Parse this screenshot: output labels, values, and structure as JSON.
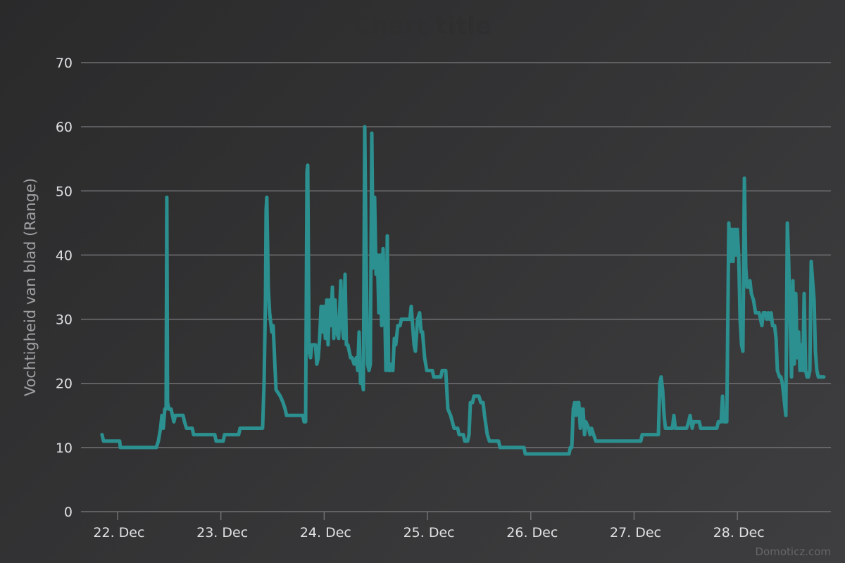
{
  "chart_data": {
    "type": "line",
    "title": "Chart title",
    "xlabel": "",
    "ylabel": "Vochtigheid van blad (Range)",
    "x_unit": "days since 22 Dec 00:00",
    "xlim": [
      -0.354,
      6.905
    ],
    "ylim": [
      0,
      70
    ],
    "grid": true,
    "y_ticks": [
      0,
      10,
      20,
      30,
      40,
      50,
      60,
      70
    ],
    "x_ticks": [
      {
        "value": 0,
        "label": "22. Dec"
      },
      {
        "value": 1,
        "label": "23. Dec"
      },
      {
        "value": 2,
        "label": "24. Dec"
      },
      {
        "value": 3,
        "label": "25. Dec"
      },
      {
        "value": 4,
        "label": "26. Dec"
      },
      {
        "value": 5,
        "label": "27. Dec"
      },
      {
        "value": 6,
        "label": "28. Dec"
      }
    ],
    "series": [
      {
        "name": "Vochtigheid van blad",
        "color": "#2b908f",
        "points": [
          [
            -0.15,
            12
          ],
          [
            -0.136,
            11
          ],
          [
            0.02,
            11
          ],
          [
            0.027,
            10
          ],
          [
            0.375,
            10
          ],
          [
            0.395,
            11
          ],
          [
            0.416,
            13
          ],
          [
            0.429,
            15
          ],
          [
            0.443,
            13
          ],
          [
            0.457,
            16
          ],
          [
            0.47,
            16
          ],
          [
            0.477,
            49
          ],
          [
            0.484,
            17
          ],
          [
            0.498,
            16
          ],
          [
            0.518,
            16
          ],
          [
            0.532,
            15
          ],
          [
            0.545,
            14
          ],
          [
            0.559,
            15
          ],
          [
            0.634,
            15
          ],
          [
            0.648,
            14
          ],
          [
            0.668,
            13
          ],
          [
            0.723,
            13
          ],
          [
            0.736,
            12
          ],
          [
            0.941,
            12
          ],
          [
            0.954,
            11
          ],
          [
            1.023,
            11
          ],
          [
            1.036,
            12
          ],
          [
            1.172,
            12
          ],
          [
            1.186,
            13
          ],
          [
            1.404,
            13
          ],
          [
            1.418,
            20
          ],
          [
            1.432,
            33
          ],
          [
            1.438,
            47
          ],
          [
            1.445,
            49
          ],
          [
            1.459,
            35
          ],
          [
            1.472,
            31
          ],
          [
            1.493,
            28
          ],
          [
            1.506,
            29
          ],
          [
            1.52,
            24
          ],
          [
            1.534,
            19
          ],
          [
            1.575,
            18
          ],
          [
            1.602,
            17
          ],
          [
            1.622,
            16
          ],
          [
            1.636,
            15
          ],
          [
            1.793,
            15
          ],
          [
            1.806,
            14
          ],
          [
            1.82,
            14
          ],
          [
            1.834,
            53
          ],
          [
            1.841,
            54
          ],
          [
            1.854,
            25
          ],
          [
            1.868,
            24
          ],
          [
            1.881,
            26
          ],
          [
            1.916,
            26
          ],
          [
            1.929,
            23
          ],
          [
            1.943,
            24
          ],
          [
            1.956,
            27
          ],
          [
            1.97,
            32
          ],
          [
            1.984,
            28
          ],
          [
            1.997,
            32
          ],
          [
            2.011,
            27
          ],
          [
            2.025,
            33
          ],
          [
            2.038,
            26
          ],
          [
            2.052,
            33
          ],
          [
            2.065,
            29
          ],
          [
            2.079,
            35
          ],
          [
            2.093,
            27
          ],
          [
            2.106,
            33
          ],
          [
            2.12,
            28
          ],
          [
            2.14,
            27
          ],
          [
            2.161,
            36
          ],
          [
            2.175,
            29
          ],
          [
            2.188,
            27
          ],
          [
            2.202,
            37
          ],
          [
            2.215,
            26
          ],
          [
            2.229,
            26
          ],
          [
            2.256,
            24
          ],
          [
            2.27,
            24
          ],
          [
            2.29,
            23
          ],
          [
            2.311,
            24
          ],
          [
            2.325,
            22
          ],
          [
            2.338,
            28
          ],
          [
            2.352,
            20
          ],
          [
            2.365,
            21
          ],
          [
            2.379,
            19
          ],
          [
            2.393,
            60
          ],
          [
            2.406,
            40
          ],
          [
            2.42,
            23
          ],
          [
            2.434,
            22
          ],
          [
            2.447,
            23
          ],
          [
            2.461,
            59
          ],
          [
            2.474,
            38
          ],
          [
            2.488,
            49
          ],
          [
            2.502,
            37
          ],
          [
            2.515,
            40
          ],
          [
            2.529,
            31
          ],
          [
            2.543,
            40
          ],
          [
            2.556,
            29
          ],
          [
            2.57,
            41
          ],
          [
            2.584,
            34
          ],
          [
            2.597,
            22
          ],
          [
            2.611,
            43
          ],
          [
            2.624,
            22
          ],
          [
            2.638,
            22
          ],
          [
            2.652,
            23
          ],
          [
            2.665,
            22
          ],
          [
            2.679,
            27
          ],
          [
            2.693,
            26
          ],
          [
            2.713,
            29
          ],
          [
            2.734,
            29
          ],
          [
            2.747,
            30
          ],
          [
            2.829,
            30
          ],
          [
            2.843,
            32
          ],
          [
            2.856,
            29
          ],
          [
            2.87,
            26
          ],
          [
            2.883,
            25
          ],
          [
            2.904,
            30
          ],
          [
            2.924,
            31
          ],
          [
            2.938,
            28
          ],
          [
            2.952,
            28
          ],
          [
            2.972,
            24
          ],
          [
            2.993,
            22
          ],
          [
            3.047,
            22
          ],
          [
            3.061,
            21
          ],
          [
            3.129,
            21
          ],
          [
            3.142,
            22
          ],
          [
            3.177,
            22
          ],
          [
            3.197,
            16
          ],
          [
            3.224,
            15
          ],
          [
            3.258,
            13
          ],
          [
            3.292,
            13
          ],
          [
            3.306,
            12
          ],
          [
            3.347,
            12
          ],
          [
            3.361,
            11
          ],
          [
            3.388,
            11
          ],
          [
            3.402,
            12
          ],
          [
            3.415,
            17
          ],
          [
            3.436,
            17
          ],
          [
            3.449,
            18
          ],
          [
            3.497,
            18
          ],
          [
            3.517,
            17
          ],
          [
            3.538,
            17
          ],
          [
            3.552,
            15
          ],
          [
            3.579,
            12
          ],
          [
            3.599,
            11
          ],
          [
            3.688,
            11
          ],
          [
            3.702,
            10
          ],
          [
            3.933,
            10
          ],
          [
            3.947,
            9
          ],
          [
            4.37,
            9
          ],
          [
            4.383,
            10
          ],
          [
            4.397,
            10
          ],
          [
            4.411,
            16
          ],
          [
            4.424,
            17
          ],
          [
            4.438,
            15
          ],
          [
            4.451,
            17
          ],
          [
            4.465,
            17
          ],
          [
            4.479,
            13
          ],
          [
            4.492,
            16
          ],
          [
            4.506,
            16
          ],
          [
            4.52,
            12
          ],
          [
            4.533,
            14
          ],
          [
            4.56,
            13
          ],
          [
            4.574,
            12
          ],
          [
            4.588,
            13
          ],
          [
            4.608,
            12
          ],
          [
            4.629,
            11
          ],
          [
            5.065,
            11
          ],
          [
            5.078,
            12
          ],
          [
            5.235,
            12
          ],
          [
            5.249,
            20
          ],
          [
            5.262,
            21
          ],
          [
            5.276,
            19
          ],
          [
            5.29,
            15
          ],
          [
            5.303,
            13
          ],
          [
            5.371,
            13
          ],
          [
            5.385,
            15
          ],
          [
            5.399,
            13
          ],
          [
            5.508,
            13
          ],
          [
            5.528,
            14
          ],
          [
            5.542,
            15
          ],
          [
            5.562,
            13
          ],
          [
            5.576,
            14
          ],
          [
            5.631,
            14
          ],
          [
            5.644,
            13
          ],
          [
            5.801,
            13
          ],
          [
            5.815,
            14
          ],
          [
            5.842,
            14
          ],
          [
            5.856,
            18
          ],
          [
            5.869,
            14
          ],
          [
            5.897,
            14
          ],
          [
            5.917,
            45
          ],
          [
            5.931,
            39
          ],
          [
            5.944,
            44
          ],
          [
            5.958,
            39
          ],
          [
            5.971,
            44
          ],
          [
            5.985,
            40
          ],
          [
            5.999,
            44
          ],
          [
            6.012,
            40
          ],
          [
            6.026,
            30
          ],
          [
            6.04,
            26
          ],
          [
            6.053,
            25
          ],
          [
            6.067,
            52
          ],
          [
            6.081,
            38
          ],
          [
            6.094,
            35
          ],
          [
            6.108,
            35
          ],
          [
            6.121,
            36
          ],
          [
            6.135,
            34
          ],
          [
            6.155,
            33
          ],
          [
            6.176,
            31
          ],
          [
            6.21,
            31
          ],
          [
            6.224,
            30
          ],
          [
            6.237,
            29
          ],
          [
            6.251,
            31
          ],
          [
            6.271,
            31
          ],
          [
            6.285,
            30
          ],
          [
            6.299,
            31
          ],
          [
            6.312,
            30
          ],
          [
            6.326,
            31
          ],
          [
            6.34,
            29
          ],
          [
            6.36,
            29
          ],
          [
            6.374,
            27
          ],
          [
            6.387,
            22
          ],
          [
            6.408,
            21
          ],
          [
            6.421,
            21
          ],
          [
            6.435,
            20
          ],
          [
            6.449,
            18
          ],
          [
            6.469,
            15
          ],
          [
            6.483,
            45
          ],
          [
            6.496,
            39
          ],
          [
            6.51,
            30
          ],
          [
            6.524,
            21
          ],
          [
            6.537,
            36
          ],
          [
            6.551,
            23
          ],
          [
            6.565,
            34
          ],
          [
            6.578,
            24
          ],
          [
            6.592,
            28
          ],
          [
            6.605,
            22
          ],
          [
            6.619,
            26
          ],
          [
            6.633,
            22
          ],
          [
            6.646,
            34
          ],
          [
            6.66,
            22
          ],
          [
            6.674,
            21
          ],
          [
            6.687,
            21
          ],
          [
            6.701,
            22
          ],
          [
            6.714,
            39
          ],
          [
            6.728,
            36
          ],
          [
            6.742,
            33
          ],
          [
            6.755,
            25
          ],
          [
            6.769,
            22
          ],
          [
            6.783,
            21
          ],
          [
            6.837,
            21
          ]
        ]
      }
    ],
    "credits": "Domoticz.com"
  }
}
